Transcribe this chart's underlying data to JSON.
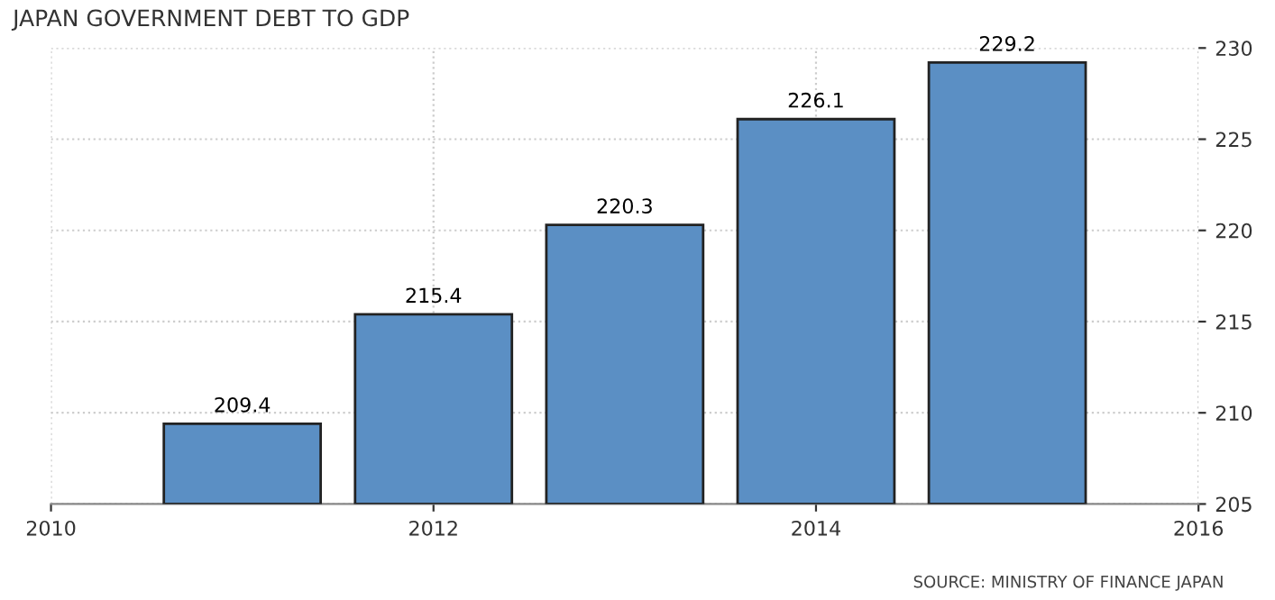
{
  "chart_data": {
    "type": "bar",
    "title": "JAPAN GOVERNMENT DEBT TO GDP",
    "x": [
      "2011",
      "2012",
      "2013",
      "2014",
      "2015"
    ],
    "values": [
      209.4,
      215.4,
      220.3,
      226.1,
      229.2
    ],
    "color": "#5b8fc4",
    "data_labels": true,
    "xlim": [
      "2010",
      "2016"
    ],
    "xticks": [
      "2010",
      "2012",
      "2014",
      "2016"
    ],
    "ylim": [
      205,
      230
    ],
    "yticks": [
      205,
      210,
      215,
      220,
      225,
      230
    ],
    "grid": true,
    "annotations": [
      "SOURCE: MINISTRY OF FINANCE JAPAN"
    ]
  }
}
